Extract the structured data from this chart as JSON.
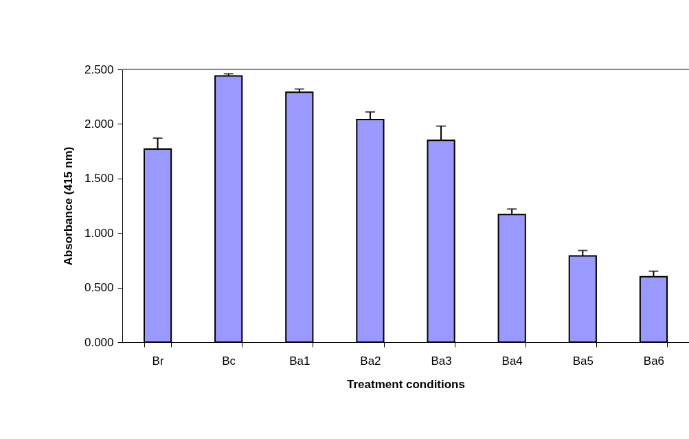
{
  "chart_data": {
    "type": "bar",
    "xlabel": "Treatment conditions",
    "ylabel": "Absorbance (415 nm)",
    "categories": [
      "Br",
      "Bc",
      "Ba1",
      "Ba2",
      "Ba3",
      "Ba4",
      "Ba5",
      "Ba6"
    ],
    "values": [
      1.77,
      2.44,
      2.29,
      2.04,
      1.85,
      1.17,
      0.79,
      0.6
    ],
    "errors": [
      [
        1.77,
        1.87
      ],
      [
        2.44,
        2.46
      ],
      [
        2.29,
        2.32
      ],
      [
        2.04,
        2.11
      ],
      [
        1.85,
        1.98
      ],
      [
        1.17,
        1.22
      ],
      [
        0.79,
        0.84
      ],
      [
        0.6,
        0.65
      ]
    ],
    "color": "#9999ff",
    "ylim": [
      0,
      2.5
    ],
    "yticks": [
      {
        "value": 0,
        "label": "0.000"
      },
      {
        "value": 0.5,
        "label": "0.500"
      },
      {
        "value": 1,
        "label": "1.000"
      },
      {
        "value": 1.5,
        "label": "1.500"
      },
      {
        "value": 2,
        "label": "2.000"
      },
      {
        "value": 2.5,
        "label": "2.500"
      }
    ],
    "grid": false
  }
}
